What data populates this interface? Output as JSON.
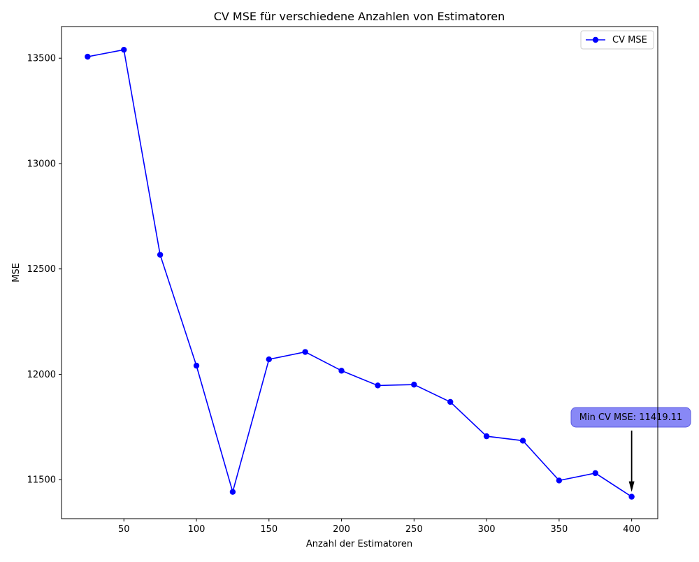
{
  "chart_data": {
    "type": "line",
    "title": "CV MSE für verschiedene Anzahlen von Estimatoren",
    "xlabel": "Anzahl der Estimatoren",
    "ylabel": "MSE",
    "xlim": [
      7,
      418
    ],
    "ylim": [
      11315,
      13650
    ],
    "xticks": [
      50,
      100,
      150,
      200,
      250,
      300,
      350,
      400
    ],
    "yticks": [
      11500,
      12000,
      12500,
      13000,
      13500
    ],
    "grid": false,
    "legend_position": "top-right",
    "series": [
      {
        "name": "CV MSE",
        "color": "#0000ff",
        "marker": "circle",
        "x": [
          25,
          50,
          75,
          100,
          125,
          150,
          175,
          200,
          225,
          250,
          275,
          300,
          325,
          350,
          375,
          400
        ],
        "y": [
          13507,
          13540,
          12567,
          12041,
          11442,
          12071,
          12106,
          12017,
          11947,
          11951,
          11869,
          11706,
          11685,
          11496,
          11531,
          11419.11
        ]
      }
    ],
    "annotation": {
      "text": "Min CV MSE: 11419.11",
      "x": 400,
      "y": 11419.11,
      "box_color": "#7b7bf5"
    }
  }
}
